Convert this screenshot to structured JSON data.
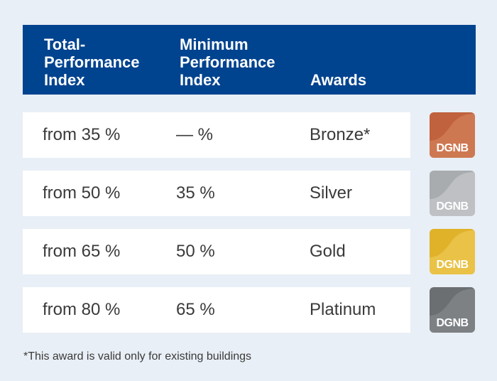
{
  "header": {
    "col1": [
      "Total-",
      "Performance",
      "Index"
    ],
    "col2": [
      "Minimum",
      "Performance",
      "Index"
    ],
    "col3": [
      "Awards"
    ]
  },
  "rows": [
    {
      "total": "from 35 %",
      "minimum": "— %",
      "award": "Bronze*",
      "badge_label": "DGNB",
      "badge_color": "#c0623e",
      "badge_color_light": "#d98a63"
    },
    {
      "total": "from 50 %",
      "minimum": "35 %",
      "award": "Silver",
      "badge_label": "DGNB",
      "badge_color": "#a8acaf",
      "badge_color_light": "#cfd2d4"
    },
    {
      "total": "from 65 %",
      "minimum": "50 %",
      "award": "Gold",
      "badge_label": "DGNB",
      "badge_color": "#e0b22a",
      "badge_color_light": "#f1cf5e"
    },
    {
      "total": "from 80 %",
      "minimum": "65 %",
      "award": "Platinum",
      "badge_label": "DGNB",
      "badge_color": "#6c6f72",
      "badge_color_light": "#8d9093"
    }
  ],
  "footnote": "*This award is valid only for existing buildings",
  "colors": {
    "header_bg": "#00438f",
    "page_bg": "#e9eff6",
    "row_bg": "#ffffff",
    "text": "#3a3a3a"
  }
}
